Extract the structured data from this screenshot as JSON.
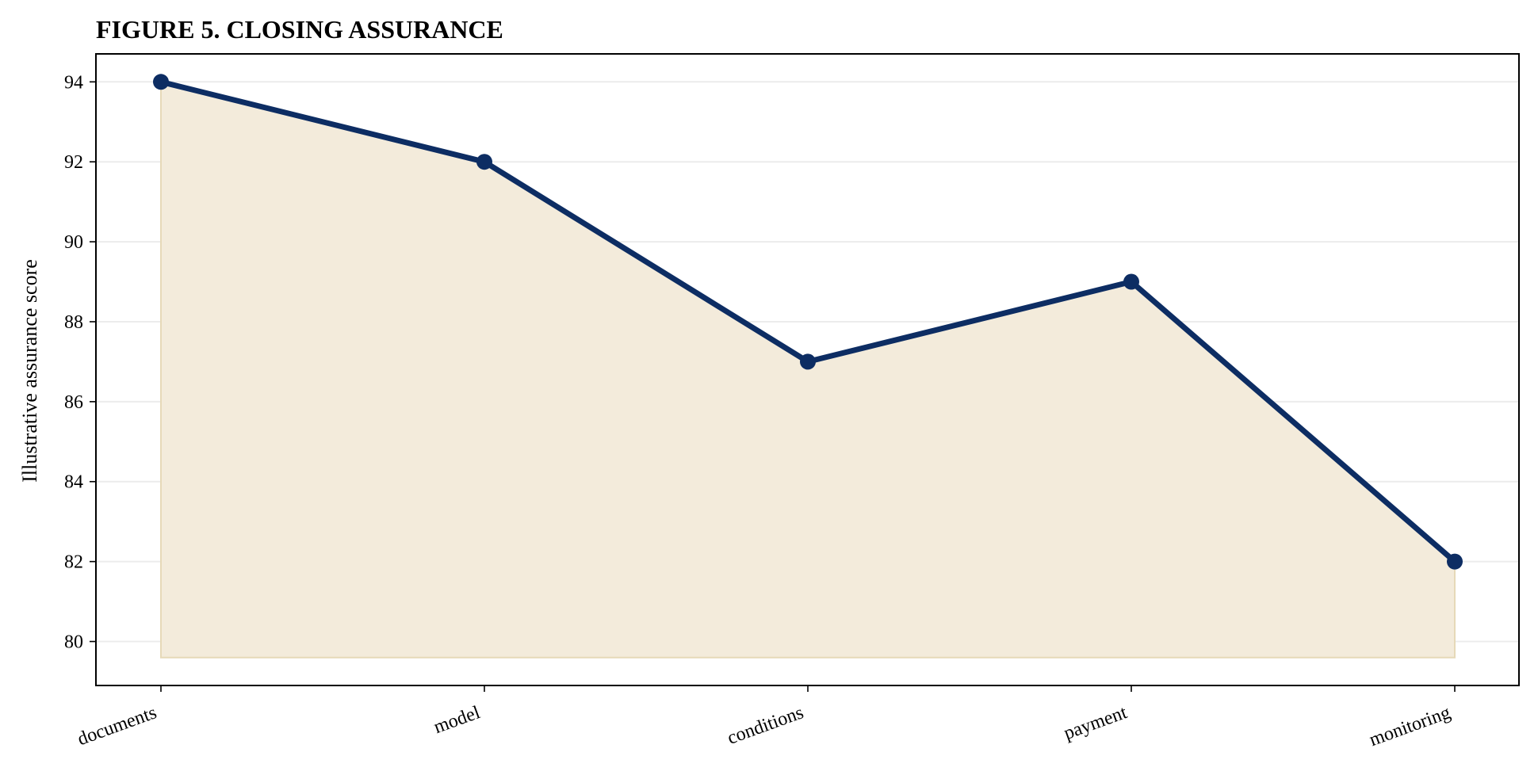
{
  "chart_data": {
    "type": "area",
    "title": "FIGURE 5. CLOSING ASSURANCE",
    "xlabel": "",
    "ylabel": "Illustrative assurance score",
    "categories": [
      "documents",
      "model",
      "conditions",
      "payment",
      "monitoring"
    ],
    "series": [
      {
        "values": [
          94,
          92,
          87,
          89,
          82
        ]
      }
    ],
    "area_baseline": 79.6,
    "ylim": [
      78.9,
      94.7
    ],
    "yticks": [
      80,
      82,
      84,
      86,
      88,
      90,
      92,
      94
    ],
    "grid": "horizontal",
    "colors": {
      "line": "#0d2d63",
      "area": "#f3ebdb",
      "area_edge": "#e6d9b8",
      "grid": "#ececec",
      "axes": "#000000"
    }
  }
}
